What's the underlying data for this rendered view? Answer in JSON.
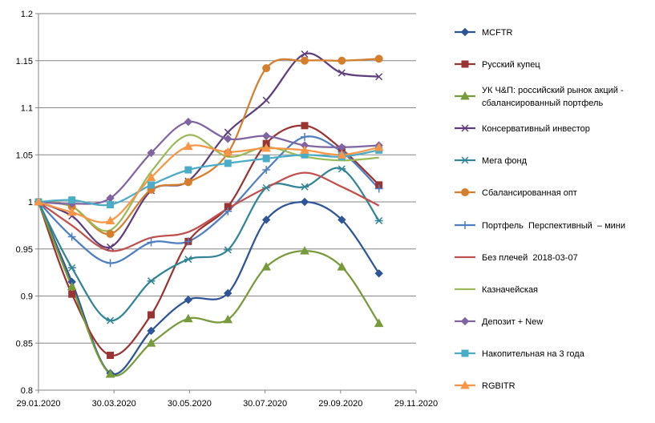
{
  "chart_data": {
    "type": "line",
    "title": "",
    "xlabel": "",
    "ylabel": "",
    "ylim": [
      0.8,
      1.2
    ],
    "yticks": [
      "0.8",
      "0.85",
      "0.9",
      "0.95",
      "1",
      "1.05",
      "1.1",
      "1.15",
      "1.2"
    ],
    "xlim": [
      "2020-01-29",
      "2020-11-29"
    ],
    "xticks": [
      "29.01.2020",
      "30.03.2020",
      "30.05.2020",
      "30.07.2020",
      "29.09.2020",
      "29.11.2020"
    ],
    "grid": "horizontal",
    "legend_position": "right",
    "x": [
      "2020-01-29",
      "2020-02-25",
      "2020-03-27",
      "2020-04-29",
      "2020-05-29",
      "2020-06-30",
      "2020-07-31",
      "2020-08-31",
      "2020-09-30",
      "2020-10-30"
    ],
    "series": [
      {
        "name": "MCFTR",
        "color": "#2e5597",
        "marker": "diamond",
        "values": [
          1.0,
          0.915,
          0.818,
          0.863,
          0.896,
          0.903,
          0.981,
          1.0,
          0.981,
          0.924
        ]
      },
      {
        "name": "Русский купец",
        "color": "#9a3433",
        "marker": "square",
        "values": [
          1.0,
          0.902,
          0.837,
          0.88,
          0.958,
          0.995,
          1.062,
          1.081,
          1.056,
          1.018
        ]
      },
      {
        "name": "УК Ч&П:  российский рынок акций - сбалансированный портфель",
        "color": "#779a3b",
        "marker": "triangle",
        "values": [
          1.0,
          0.91,
          0.817,
          0.85,
          0.876,
          0.875,
          0.931,
          0.948,
          0.931,
          0.871
        ]
      },
      {
        "name": "Консервативный инвестор",
        "color": "#5e3e7c",
        "marker": "x",
        "values": [
          1.0,
          0.985,
          0.952,
          1.012,
          1.022,
          1.074,
          1.108,
          1.157,
          1.137,
          1.133
        ]
      },
      {
        "name": "Мега фонд",
        "color": "#318597",
        "marker": "star",
        "values": [
          1.0,
          0.93,
          0.874,
          0.916,
          0.939,
          0.949,
          1.015,
          1.016,
          1.035,
          0.98
        ]
      },
      {
        "name": "Сбалансированная опт",
        "color": "#d47e2e",
        "marker": "circle",
        "values": [
          1.0,
          0.995,
          0.966,
          1.013,
          1.021,
          1.052,
          1.142,
          1.15,
          1.15,
          1.152
        ]
      },
      {
        "name": "Портфель  Перспективный  – мини",
        "color": "#4e7fc0",
        "marker": "plus",
        "values": [
          1.0,
          0.963,
          0.935,
          0.957,
          0.958,
          0.99,
          1.034,
          1.069,
          1.053,
          1.014
        ]
      },
      {
        "name": "Без плечей  2018-03-07",
        "color": "#c0504d",
        "marker": "none",
        "values": [
          1.0,
          0.975,
          0.948,
          0.962,
          0.968,
          0.993,
          1.015,
          1.031,
          1.016,
          0.996
        ]
      },
      {
        "name": "Казначейская",
        "color": "#9bbb59",
        "marker": "none",
        "values": [
          1.0,
          0.995,
          0.97,
          1.032,
          1.071,
          1.048,
          1.058,
          1.048,
          1.044,
          1.047
        ]
      },
      {
        "name": "Депозит + New",
        "color": "#8064a2",
        "marker": "diamond",
        "values": [
          1.0,
          0.998,
          1.004,
          1.052,
          1.085,
          1.067,
          1.07,
          1.06,
          1.058,
          1.06
        ]
      },
      {
        "name": "Накопительная на 3 года",
        "color": "#4bacc6",
        "marker": "square",
        "values": [
          1.0,
          1.002,
          0.997,
          1.018,
          1.034,
          1.041,
          1.046,
          1.05,
          1.048,
          1.055
        ]
      },
      {
        "name": "RGBITR",
        "color": "#f79646",
        "marker": "triangle",
        "values": [
          1.0,
          0.989,
          0.98,
          1.026,
          1.059,
          1.053,
          1.057,
          1.055,
          1.05,
          1.058
        ]
      }
    ]
  }
}
